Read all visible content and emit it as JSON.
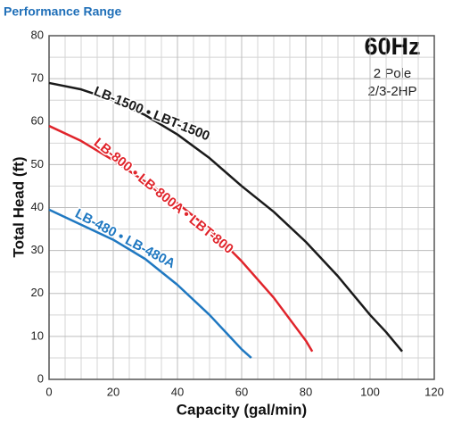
{
  "chart_data": {
    "type": "line",
    "title": "Performance Range",
    "xlabel": "Capacity (gal/min)",
    "ylabel": "Total Head (ft)",
    "annotations": [
      "60Hz",
      "2 Pole",
      "2/3-2HP"
    ],
    "xlim": [
      0,
      120
    ],
    "ylim": [
      0,
      80
    ],
    "xticks": [
      0,
      20,
      40,
      60,
      80,
      100,
      120
    ],
    "yticks": [
      0,
      10,
      20,
      30,
      40,
      50,
      60,
      70,
      80
    ],
    "x_minor_grid": [
      5,
      10,
      15,
      25,
      30,
      35,
      45,
      50,
      55,
      65,
      70,
      75,
      85,
      90,
      95,
      105,
      110,
      115
    ],
    "y_minor_grid": [
      5,
      15,
      25,
      35,
      45,
      55,
      65,
      75
    ],
    "grid": true,
    "series": [
      {
        "name": "LB-1500 • LBT-1500",
        "color": "#1a1a1a",
        "x": [
          0,
          10,
          20,
          30,
          40,
          50,
          60,
          70,
          80,
          90,
          100,
          105,
          110
        ],
        "values": [
          69,
          67.5,
          65,
          61.5,
          57,
          51.5,
          45,
          39,
          32,
          24,
          15,
          11,
          6.5
        ]
      },
      {
        "name": "LB-800 • LB-800A • LBT-800",
        "color": "#e0242b",
        "x": [
          0,
          10,
          20,
          30,
          40,
          50,
          60,
          70,
          80,
          82
        ],
        "values": [
          59,
          55.5,
          51,
          46,
          41,
          35,
          27.5,
          19,
          9,
          6.5
        ]
      },
      {
        "name": "LB-480 • LB-480A",
        "color": "#1f78c1",
        "x": [
          0,
          10,
          20,
          30,
          40,
          50,
          60,
          63
        ],
        "values": [
          39.5,
          36,
          32.5,
          28,
          22,
          15,
          7,
          5
        ]
      }
    ]
  }
}
